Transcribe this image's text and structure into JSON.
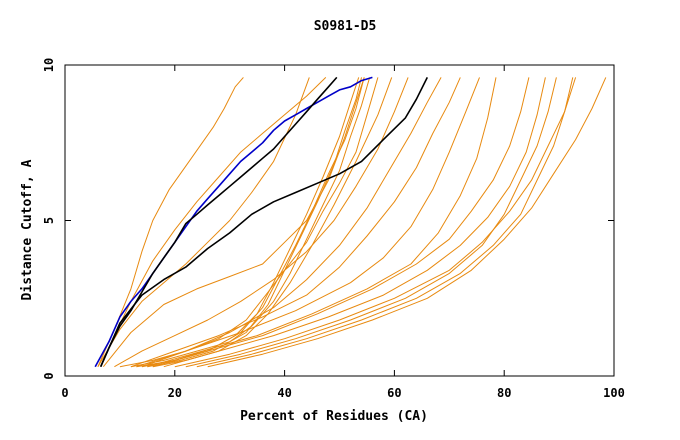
{
  "chart_data": {
    "type": "line",
    "title": "S0981-D5",
    "xlabel": "Percent of Residues (CA)",
    "ylabel": "Distance Cutoff, A",
    "xlim": [
      0,
      100
    ],
    "ylim": [
      0,
      10
    ],
    "x_ticks": [
      0,
      20,
      40,
      60,
      80,
      100
    ],
    "y_ticks": [
      0,
      5,
      10
    ],
    "x_tick_labels": [
      "0",
      "20",
      "40",
      "60",
      "80",
      "100"
    ],
    "y_tick_labels": [
      "0",
      "5",
      "10"
    ],
    "colors": {
      "other": "#E88A10",
      "highlight_blue": "#0000C8",
      "highlight_black": "#000000",
      "axis": "#000000"
    },
    "series": [
      {
        "name": "orange-01",
        "color": "#E88A10",
        "x": [
          6,
          9,
          12,
          14,
          16,
          19,
          23,
          27,
          29,
          31,
          32.5
        ],
        "y": [
          0.3,
          1.5,
          2.8,
          4,
          5,
          6,
          7,
          8,
          8.6,
          9.3,
          9.6
        ]
      },
      {
        "name": "orange-02",
        "color": "#E88A10",
        "x": [
          6,
          10,
          14,
          18,
          22,
          26,
          30,
          34,
          38,
          42,
          44.5
        ],
        "y": [
          0.3,
          1.5,
          2.4,
          3,
          3.6,
          4.3,
          5,
          5.9,
          6.9,
          8.4,
          9.6
        ]
      },
      {
        "name": "orange-03",
        "color": "#E88A10",
        "x": [
          6.5,
          9,
          12,
          16,
          20,
          24,
          28,
          32,
          36,
          40,
          44,
          47.5
        ],
        "y": [
          0.3,
          1.3,
          2.4,
          3.7,
          4.7,
          5.6,
          6.4,
          7.2,
          7.8,
          8.4,
          9,
          9.6
        ]
      },
      {
        "name": "orange-04",
        "color": "#E88A10",
        "x": [
          7,
          12,
          18,
          24,
          30,
          36,
          40,
          44,
          48,
          51,
          54.5
        ],
        "y": [
          0.3,
          1.4,
          2.3,
          2.8,
          3.2,
          3.6,
          4.3,
          5,
          6.3,
          7.7,
          9.6
        ]
      },
      {
        "name": "orange-05",
        "color": "#E88A10",
        "x": [
          10,
          16,
          22,
          28,
          33,
          37,
          40,
          44,
          47,
          50,
          53,
          55,
          57
        ],
        "y": [
          0.3,
          0.5,
          0.8,
          1.2,
          1.8,
          2.7,
          3.4,
          4.3,
          5.3,
          6.2,
          7.2,
          8.4,
          9.6
        ]
      },
      {
        "name": "orange-06",
        "color": "#E88A10",
        "x": [
          12,
          18,
          24,
          30,
          34,
          38,
          41,
          44,
          47,
          50,
          52,
          54,
          55.5
        ],
        "y": [
          0.3,
          0.5,
          0.8,
          1.1,
          1.6,
          2.4,
          3.3,
          4.4,
          5.5,
          6.6,
          7.7,
          8.7,
          9.6
        ]
      },
      {
        "name": "orange-07",
        "color": "#E88A10",
        "x": [
          13,
          20,
          27,
          32,
          36,
          39,
          42,
          45,
          48,
          51,
          53,
          54.5
        ],
        "y": [
          0.3,
          0.5,
          0.9,
          1.4,
          2.2,
          3.2,
          4.2,
          5.3,
          6.5,
          7.6,
          8.6,
          9.6
        ]
      },
      {
        "name": "orange-08",
        "color": "#E88A10",
        "x": [
          14,
          20,
          26,
          31,
          35,
          38,
          41,
          44,
          47,
          50,
          52,
          53.5
        ],
        "y": [
          0.3,
          0.5,
          0.8,
          1.3,
          2,
          3,
          4.1,
          5.2,
          6.4,
          7.7,
          8.8,
          9.6
        ]
      },
      {
        "name": "orange-09",
        "color": "#E88A10",
        "x": [
          15,
          21,
          27,
          33,
          37,
          40,
          43,
          46,
          49,
          51,
          53,
          54
        ],
        "y": [
          0.3,
          0.5,
          0.8,
          1.4,
          2.3,
          3.4,
          4.5,
          5.6,
          6.8,
          7.9,
          8.9,
          9.6
        ]
      },
      {
        "name": "orange-10",
        "color": "#E88A10",
        "x": [
          16,
          22,
          28,
          33,
          37,
          41,
          45,
          49,
          53,
          57,
          59.5
        ],
        "y": [
          0.3,
          0.5,
          0.8,
          1.3,
          2,
          3,
          4.2,
          5.5,
          6.9,
          8.4,
          9.6
        ]
      },
      {
        "name": "orange-11",
        "color": "#E88A10",
        "x": [
          9,
          14,
          20,
          26,
          32,
          38,
          44,
          49,
          53,
          57,
          60,
          62.5
        ],
        "y": [
          0.3,
          0.8,
          1.3,
          1.8,
          2.4,
          3.1,
          4,
          5,
          6.1,
          7.3,
          8.5,
          9.6
        ]
      },
      {
        "name": "orange-12",
        "color": "#E88A10",
        "x": [
          14,
          22,
          30,
          38,
          44,
          50,
          55,
          59,
          63,
          66,
          68.5
        ],
        "y": [
          0.3,
          0.8,
          1.4,
          2.2,
          3.1,
          4.2,
          5.4,
          6.6,
          7.8,
          8.8,
          9.6
        ]
      },
      {
        "name": "orange-13",
        "color": "#E88A10",
        "x": [
          12,
          20,
          28,
          36,
          44,
          50,
          55,
          60,
          64,
          67,
          70,
          72
        ],
        "y": [
          0.3,
          0.8,
          1.3,
          1.9,
          2.6,
          3.5,
          4.5,
          5.6,
          6.7,
          7.8,
          8.8,
          9.6
        ]
      },
      {
        "name": "orange-14",
        "color": "#E88A10",
        "x": [
          13,
          22,
          32,
          42,
          52,
          58,
          63,
          67,
          70,
          73,
          75.5
        ],
        "y": [
          0.3,
          0.8,
          1.4,
          2.1,
          3,
          3.8,
          4.8,
          6,
          7.2,
          8.5,
          9.6
        ]
      },
      {
        "name": "orange-15",
        "color": "#E88A10",
        "x": [
          15,
          25,
          35,
          45,
          55,
          63,
          68,
          72,
          75,
          77,
          78.5
        ],
        "y": [
          0.3,
          0.8,
          1.3,
          2,
          2.8,
          3.6,
          4.6,
          5.8,
          7,
          8.3,
          9.6
        ]
      },
      {
        "name": "orange-16",
        "color": "#E88A10",
        "x": [
          16,
          26,
          36,
          46,
          56,
          64,
          70,
          74,
          78,
          81,
          83,
          84.5
        ],
        "y": [
          0.3,
          0.8,
          1.3,
          2,
          2.8,
          3.6,
          4.4,
          5.3,
          6.3,
          7.4,
          8.5,
          9.6
        ]
      },
      {
        "name": "orange-17",
        "color": "#E88A10",
        "x": [
          18,
          28,
          38,
          48,
          58,
          66,
          72,
          77,
          81,
          84,
          86,
          87.5
        ],
        "y": [
          0.3,
          0.8,
          1.3,
          1.9,
          2.6,
          3.4,
          4.2,
          5.1,
          6.1,
          7.2,
          8.4,
          9.6
        ]
      },
      {
        "name": "orange-18",
        "color": "#E88A10",
        "x": [
          22,
          32,
          42,
          52,
          62,
          70,
          76,
          80,
          83,
          86,
          88,
          89.5
        ],
        "y": [
          0.3,
          0.7,
          1.2,
          1.8,
          2.5,
          3.3,
          4.2,
          5.2,
          6.3,
          7.4,
          8.5,
          9.6
        ]
      },
      {
        "name": "orange-19",
        "color": "#E88A10",
        "x": [
          24,
          34,
          44,
          54,
          64,
          72,
          78,
          83,
          86,
          89,
          91,
          92.5
        ],
        "y": [
          0.3,
          0.7,
          1.2,
          1.8,
          2.5,
          3.3,
          4.2,
          5.2,
          6.3,
          7.4,
          8.5,
          9.6
        ]
      },
      {
        "name": "orange-20",
        "color": "#E88A10",
        "x": [
          20,
          30,
          40,
          50,
          60,
          70,
          76,
          81,
          85,
          88,
          91,
          93
        ],
        "y": [
          0.3,
          0.7,
          1.2,
          1.8,
          2.5,
          3.4,
          4.3,
          5.3,
          6.3,
          7.4,
          8.5,
          9.6
        ]
      },
      {
        "name": "orange-21",
        "color": "#E88A10",
        "x": [
          26,
          36,
          46,
          56,
          66,
          74,
          80,
          85,
          89,
          93,
          96,
          98.5
        ],
        "y": [
          0.3,
          0.7,
          1.2,
          1.8,
          2.5,
          3.4,
          4.4,
          5.4,
          6.5,
          7.6,
          8.6,
          9.6
        ]
      },
      {
        "name": "blue",
        "color": "#0000C8",
        "x": [
          5.5,
          8,
          10,
          12,
          14,
          16,
          18,
          20,
          22,
          24,
          26,
          28,
          30,
          32,
          34,
          36,
          38,
          40,
          42,
          44,
          46,
          48,
          50,
          52,
          54,
          56
        ],
        "y": [
          0.3,
          1.1,
          1.9,
          2.4,
          2.8,
          3.3,
          3.8,
          4.3,
          4.8,
          5.3,
          5.7,
          6.1,
          6.5,
          6.9,
          7.2,
          7.5,
          7.9,
          8.2,
          8.4,
          8.6,
          8.8,
          9,
          9.2,
          9.3,
          9.5,
          9.6
        ]
      },
      {
        "name": "black-1",
        "color": "#000000",
        "x": [
          6.5,
          8,
          10,
          12,
          14,
          16,
          18,
          20,
          22,
          24,
          26,
          28,
          30,
          32,
          34,
          36,
          38,
          40,
          42,
          44,
          46,
          48,
          49.5
        ],
        "y": [
          0.3,
          0.9,
          1.6,
          2.1,
          2.7,
          3.3,
          3.8,
          4.3,
          4.9,
          5.2,
          5.5,
          5.8,
          6.1,
          6.4,
          6.7,
          7,
          7.3,
          7.7,
          8.1,
          8.5,
          8.9,
          9.3,
          9.6
        ]
      },
      {
        "name": "black-2",
        "color": "#000000",
        "x": [
          6.5,
          10,
          14,
          18,
          22,
          26,
          30,
          34,
          38,
          42,
          46,
          50,
          54,
          58,
          62,
          64,
          66
        ],
        "y": [
          0.3,
          1.7,
          2.6,
          3.1,
          3.5,
          4.1,
          4.6,
          5.2,
          5.6,
          5.9,
          6.2,
          6.5,
          6.9,
          7.6,
          8.3,
          8.9,
          9.6
        ]
      }
    ]
  }
}
